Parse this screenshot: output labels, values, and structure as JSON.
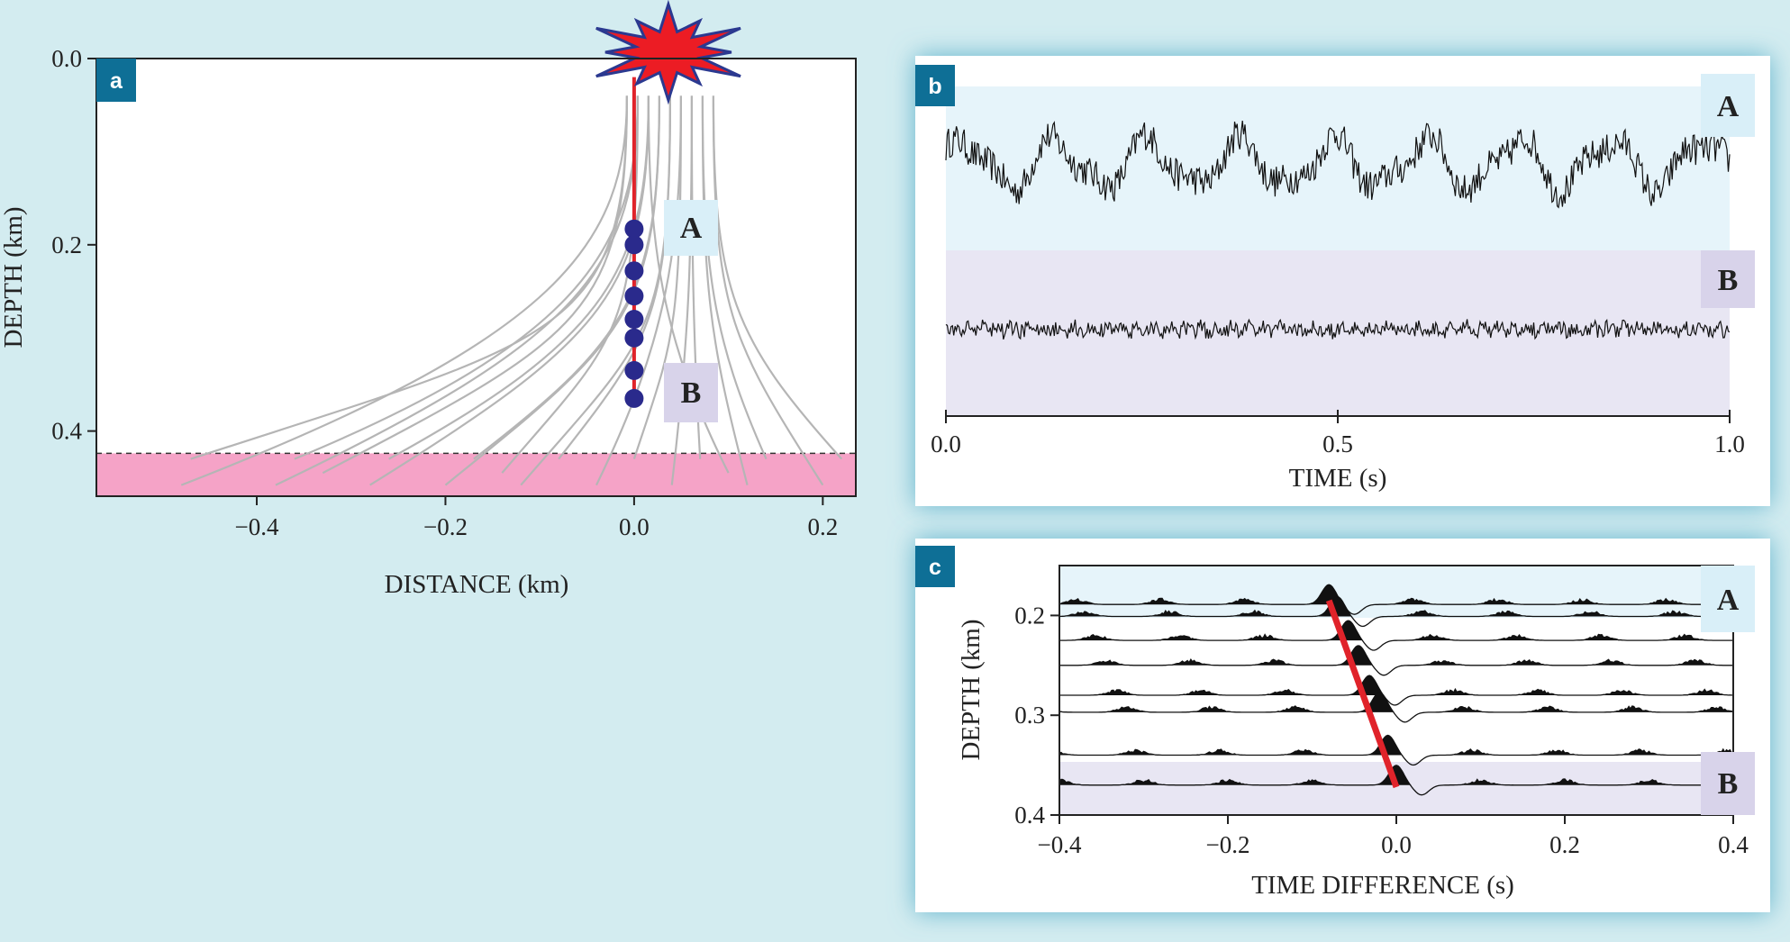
{
  "colors": {
    "background": "#d3ecf0",
    "ray": "#b5b5b5",
    "borehole": "#e0232a",
    "receiver": "#2a2a8c",
    "source_fill": "#ec1c24",
    "source_edge": "#2b3990",
    "layer": "#f5a3c7",
    "zoneA": "#e6f4fa",
    "zoneB": "#e8e6f3",
    "labelA": "#d9eff8",
    "labelB": "#d8d3ea",
    "panel_tag": "#0e6f96"
  },
  "panel_labels": {
    "a": "a",
    "b": "b",
    "c": "c"
  },
  "zone_labels": {
    "A": "A",
    "B": "B"
  },
  "chart_data": [
    {
      "panel": "a",
      "type": "scatter",
      "title": "",
      "xlabel": "DISTANCE (km)",
      "ylabel": "DEPTH (km)",
      "xlim": [
        -0.57,
        0.235
      ],
      "ylim": [
        0.47,
        0.0
      ],
      "xticks": [
        -0.4,
        -0.2,
        0.0,
        0.2
      ],
      "xtick_labels": [
        "−0.4",
        "−0.2",
        "0.0",
        "0.2"
      ],
      "yticks": [
        0.0,
        0.2,
        0.4
      ],
      "ytick_labels": [
        "0.0",
        "0.2",
        "0.4"
      ],
      "source": {
        "x": 0.0,
        "depth": 0.0
      },
      "receivers": {
        "x": 0.0,
        "depths": [
          0.183,
          0.2,
          0.228,
          0.255,
          0.28,
          0.3,
          0.335,
          0.365
        ]
      },
      "layer_top_depth": 0.424,
      "layer_bottom_depth": 0.47,
      "ray_endpoints": [
        [
          -0.48,
          0.458
        ],
        [
          -0.38,
          0.458
        ],
        [
          -0.28,
          0.458
        ],
        [
          -0.2,
          0.458
        ],
        [
          -0.12,
          0.458
        ],
        [
          -0.04,
          0.458
        ],
        [
          0.04,
          0.458
        ],
        [
          0.12,
          0.458
        ],
        [
          0.2,
          0.458
        ],
        [
          -0.47,
          0.43
        ],
        [
          -0.36,
          0.43
        ],
        [
          -0.26,
          0.43
        ],
        [
          -0.17,
          0.43
        ],
        [
          -0.08,
          0.43
        ],
        [
          0.0,
          0.43
        ],
        [
          0.07,
          0.43
        ],
        [
          0.14,
          0.43
        ],
        [
          0.22,
          0.43
        ],
        [
          -0.33,
          0.445
        ],
        [
          -0.14,
          0.445
        ],
        [
          0.1,
          0.445
        ]
      ]
    },
    {
      "panel": "b",
      "type": "line",
      "title": "",
      "xlabel": "TIME (s)",
      "ylabel": "",
      "xlim": [
        0.0,
        1.0
      ],
      "xticks": [
        0.0,
        0.5,
        1.0
      ],
      "xtick_labels": [
        "0.0",
        "0.5",
        "1.0"
      ],
      "series": [
        {
          "name": "A",
          "amplitude": 0.9,
          "dominant_period_s": 0.118,
          "samples": 600
        },
        {
          "name": "B",
          "amplitude": 0.35,
          "dominant_period_s": 0.02,
          "samples": 600
        }
      ]
    },
    {
      "panel": "c",
      "type": "line",
      "title": "",
      "xlabel": "TIME DIFFERENCE (s)",
      "ylabel": "DEPTH (km)",
      "xlim": [
        -0.4,
        0.4
      ],
      "ylim": [
        0.4,
        0.15
      ],
      "xticks": [
        -0.4,
        -0.2,
        0.0,
        0.2,
        0.4
      ],
      "xtick_labels": [
        "−0.4",
        "−0.2",
        "0.0",
        "0.2",
        "0.4"
      ],
      "yticks": [
        0.2,
        0.3,
        0.4
      ],
      "ytick_labels": [
        "0.2",
        "0.3",
        "0.4"
      ],
      "trace_depths": [
        0.189,
        0.201,
        0.225,
        0.25,
        0.28,
        0.297,
        0.34,
        0.37
      ],
      "peak_times": [
        -0.08,
        -0.07,
        -0.057,
        -0.045,
        -0.032,
        -0.02,
        -0.01,
        0.0
      ],
      "move_out_line": {
        "t_top": -0.08,
        "depth_top": 0.185,
        "t_bottom": 0.0,
        "depth_bottom": 0.372
      }
    }
  ]
}
